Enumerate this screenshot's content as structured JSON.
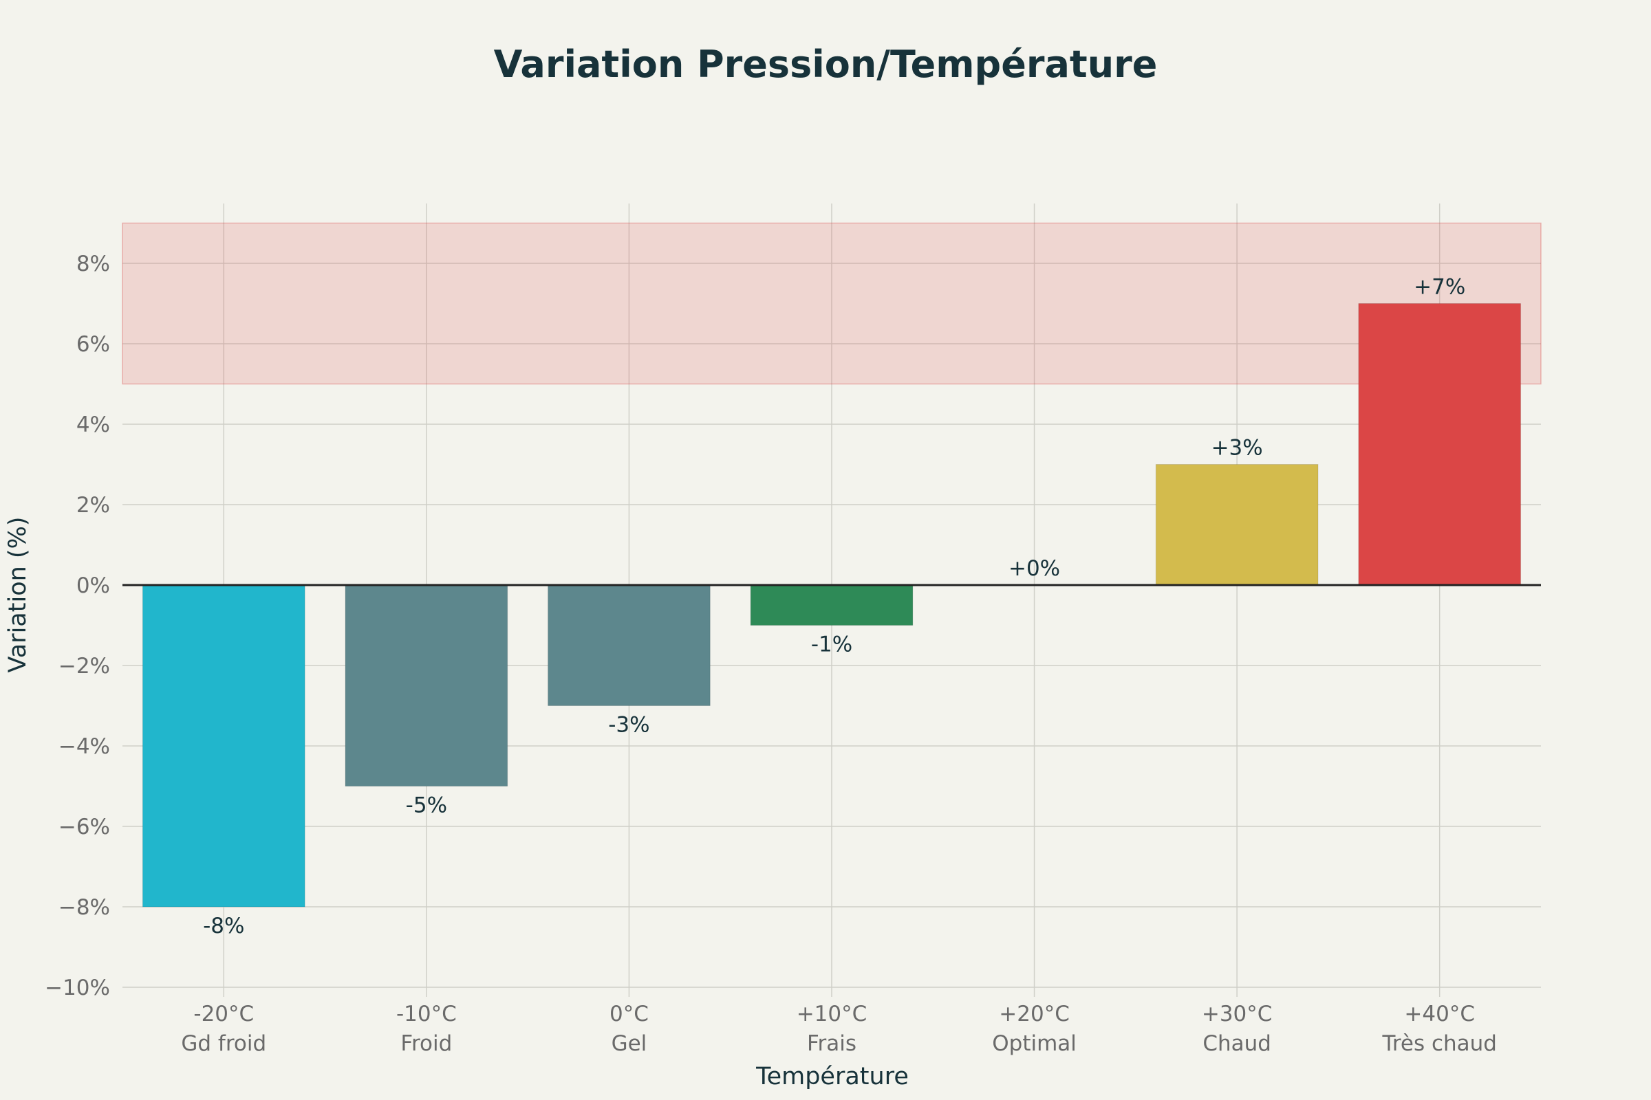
{
  "chart_data": {
    "type": "bar",
    "title": "Variation Pression/Température",
    "xlabel": "Température",
    "ylabel": "Variation (%)",
    "ylim": [
      -10,
      9
    ],
    "yticks": [
      -10,
      -8,
      -6,
      -4,
      -2,
      0,
      2,
      4,
      6,
      8
    ],
    "ytick_labels": [
      "−10%",
      "−8%",
      "−6%",
      "−4%",
      "−2%",
      "0%",
      "2%",
      "4%",
      "6%",
      "8%"
    ],
    "categories": [
      {
        "temp": "-20°C",
        "label": "Gd froid"
      },
      {
        "temp": "-10°C",
        "label": "Froid"
      },
      {
        "temp": "0°C",
        "label": "Gel"
      },
      {
        "temp": "+10°C",
        "label": "Frais"
      },
      {
        "temp": "+20°C",
        "label": "Optimal"
      },
      {
        "temp": "+30°C",
        "label": "Chaud"
      },
      {
        "temp": "+40°C",
        "label": "Très chaud"
      }
    ],
    "values": [
      -8,
      -5,
      -3,
      -1,
      0,
      3,
      7
    ],
    "value_labels": [
      "-8%",
      "-5%",
      "-3%",
      "-1%",
      "+0%",
      "+3%",
      "+7%"
    ],
    "colors": [
      "#21b6cc",
      "#5d878d",
      "#5d878d",
      "#2e8a57",
      "#2e8a57",
      "#d3bb4d",
      "#db4646"
    ],
    "highlight_band": {
      "y_from": 5,
      "y_to": 9,
      "color": "#db4646"
    },
    "grid": true
  }
}
